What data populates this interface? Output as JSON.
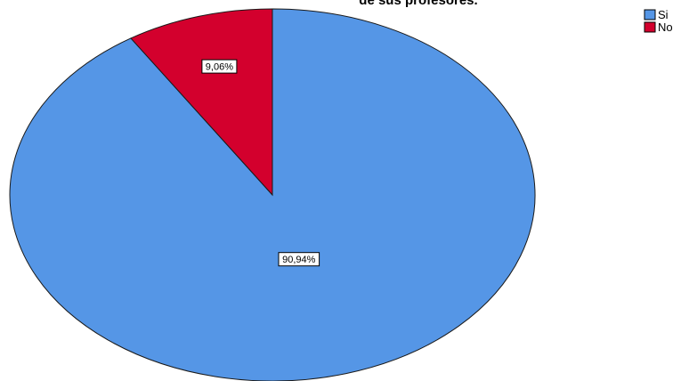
{
  "chart_data": {
    "type": "pie",
    "title": "de sus profesores.",
    "slices": [
      {
        "label": "Si",
        "value": 90.94,
        "display": "90,94%",
        "color": "#5596E6"
      },
      {
        "label": "No",
        "value": 9.06,
        "display": "9,06%",
        "color": "#D3002D"
      }
    ],
    "legend": {
      "placement": "top-right",
      "entries": [
        "Si",
        "No"
      ]
    }
  }
}
